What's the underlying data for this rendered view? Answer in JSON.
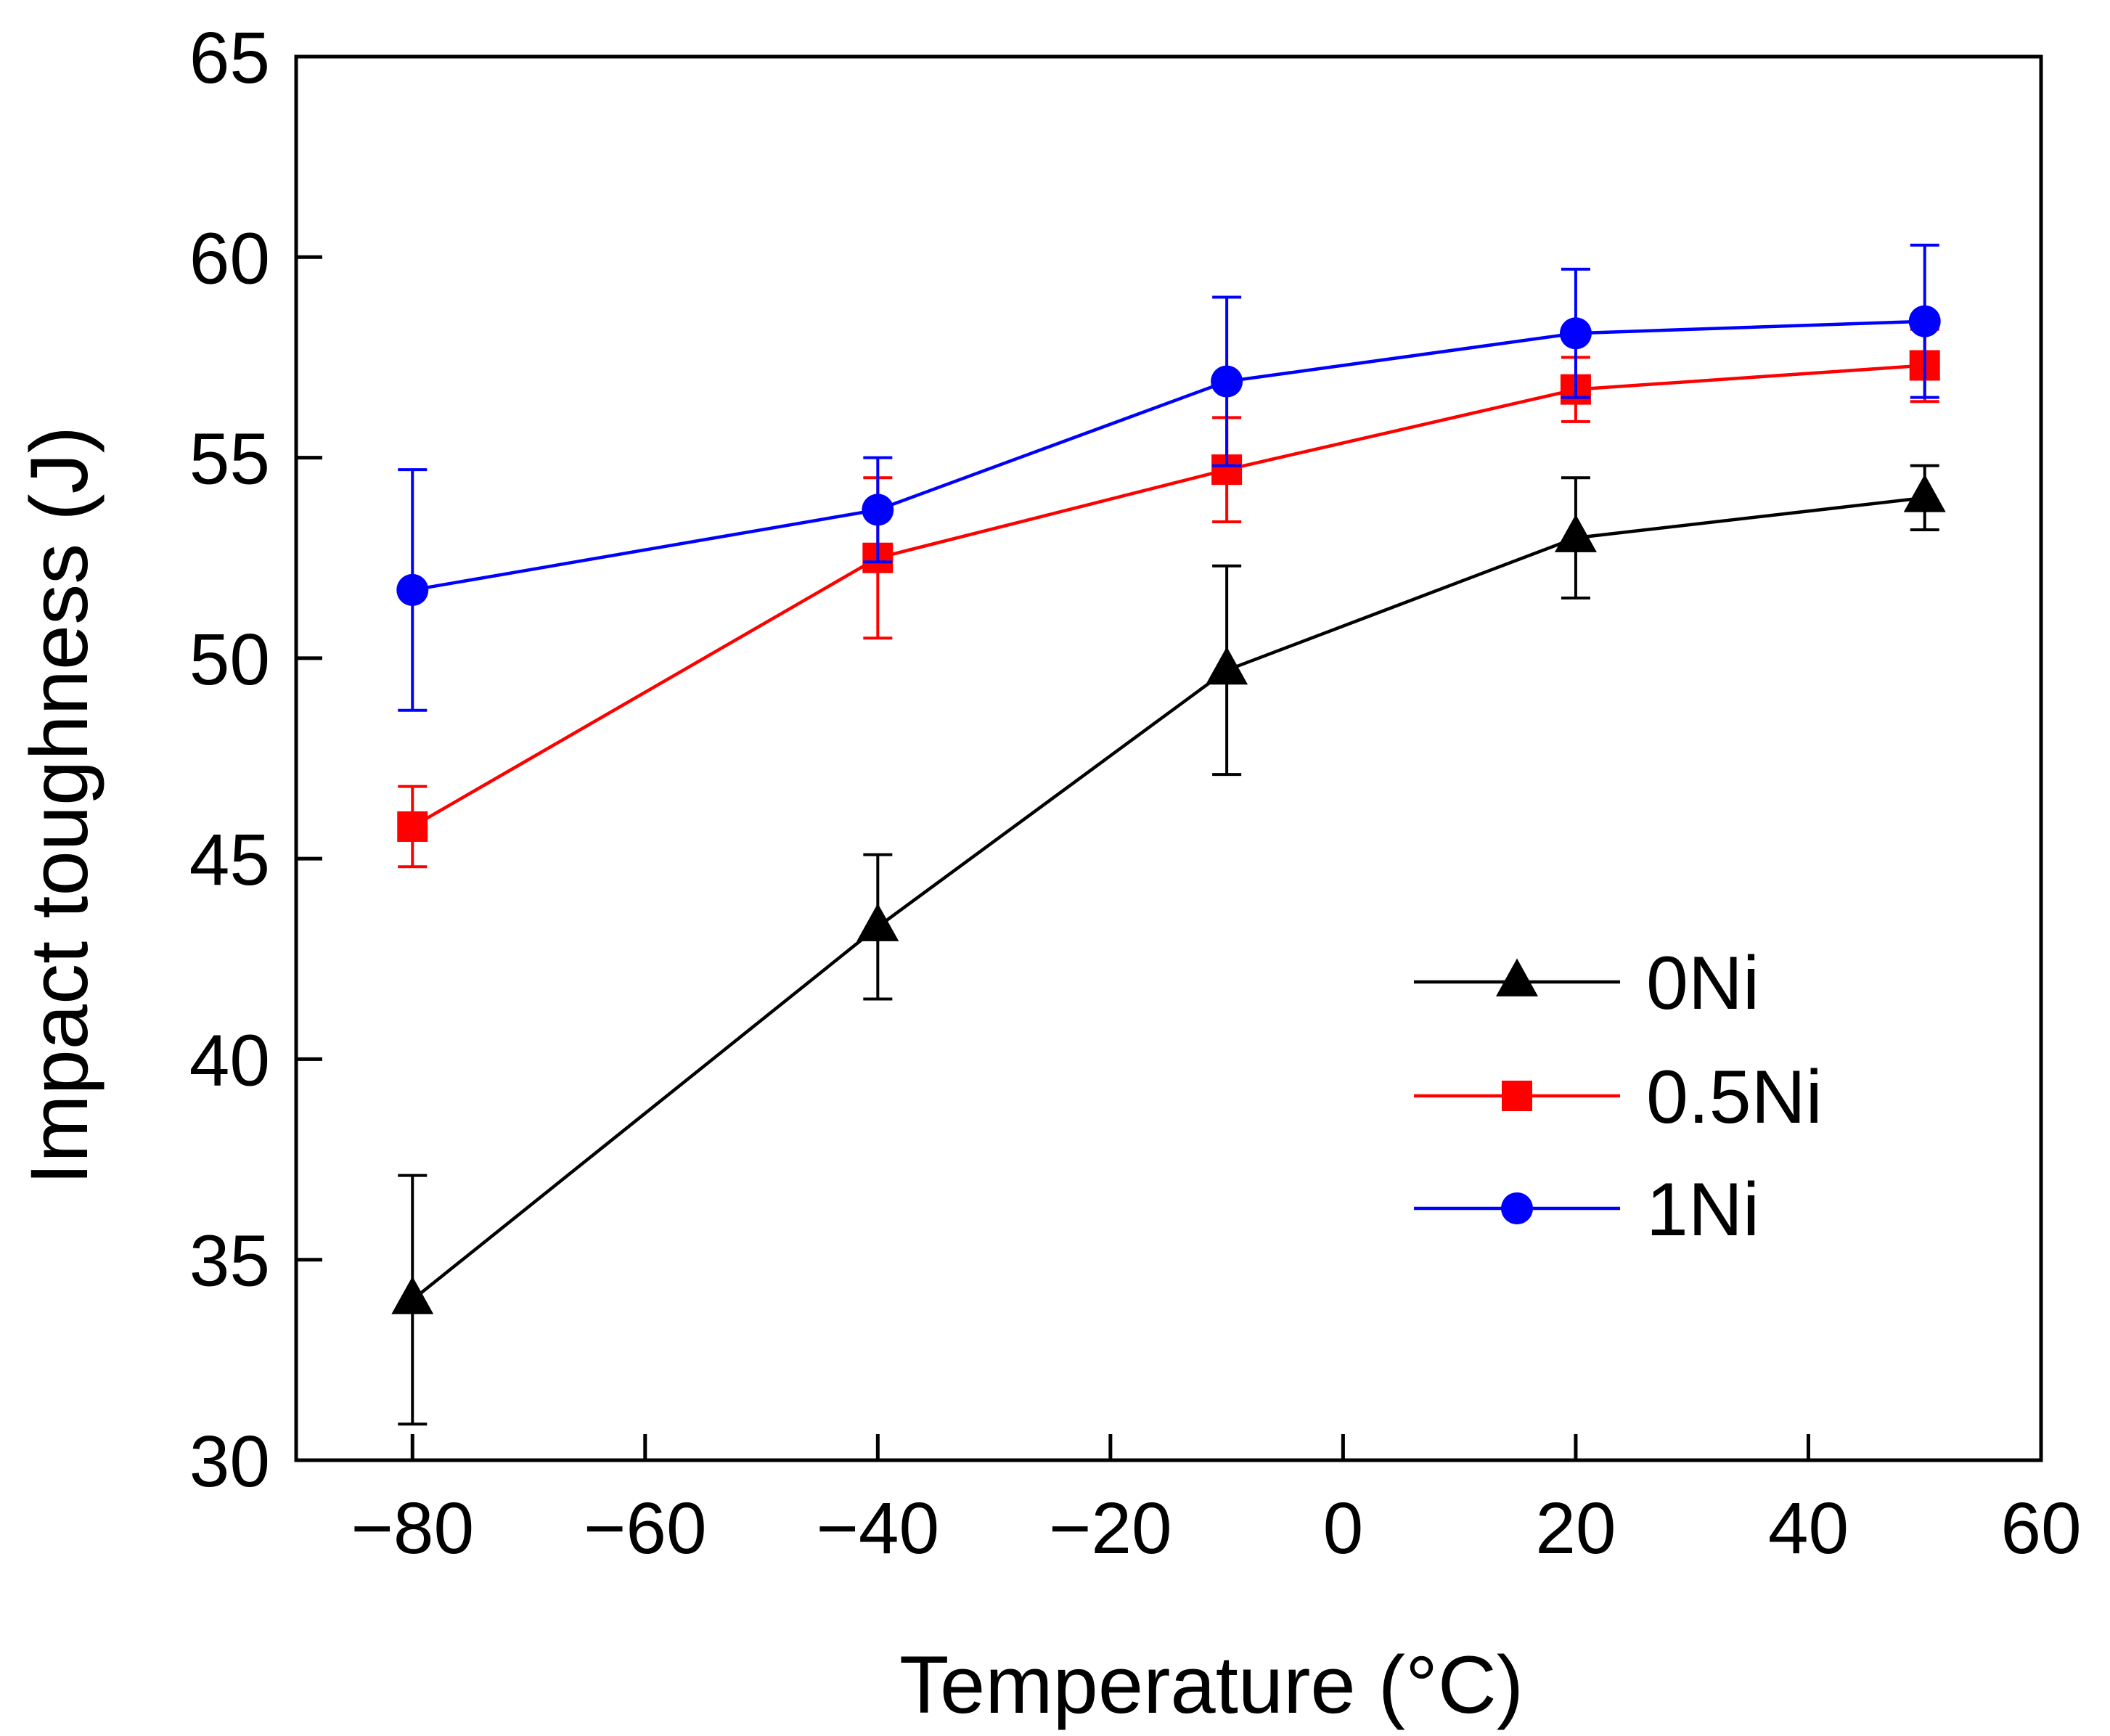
{
  "chart_data": {
    "type": "line",
    "title": "",
    "xlabel": "Temperature (°C)",
    "ylabel": "Impact toughness (J)",
    "xlim": [
      -90,
      60
    ],
    "ylim": [
      30,
      65
    ],
    "x_ticks": [
      -80,
      -60,
      -40,
      -20,
      0,
      20,
      40,
      60
    ],
    "x_tick_labels": [
      "−80",
      "−60",
      "−40",
      "−20",
      "0",
      "20",
      "40",
      "60"
    ],
    "y_ticks": [
      30,
      35,
      40,
      45,
      50,
      55,
      60,
      65
    ],
    "y_tick_labels": [
      "30",
      "35",
      "40",
      "45",
      "50",
      "55",
      "60",
      "65"
    ],
    "grid": false,
    "legend_position": "bottom-right",
    "x": [
      -80,
      -40,
      -10,
      20,
      50
    ],
    "series": [
      {
        "name": "0Ni",
        "color": "#000000",
        "marker": "triangle",
        "values": [
          34.0,
          43.3,
          49.7,
          53.0,
          54.0
        ],
        "error": [
          3.1,
          1.8,
          2.6,
          1.5,
          0.8
        ]
      },
      {
        "name": "0.5Ni",
        "color": "#ff0000",
        "marker": "square",
        "values": [
          45.8,
          52.5,
          54.7,
          56.7,
          57.3
        ],
        "error": [
          1.0,
          2.0,
          1.3,
          0.8,
          0.9
        ]
      },
      {
        "name": "1Ni",
        "color": "#0000ff",
        "marker": "circle",
        "values": [
          51.7,
          53.7,
          56.9,
          58.1,
          58.4
        ],
        "error": [
          3.0,
          1.3,
          2.1,
          1.6,
          1.9
        ]
      }
    ]
  }
}
